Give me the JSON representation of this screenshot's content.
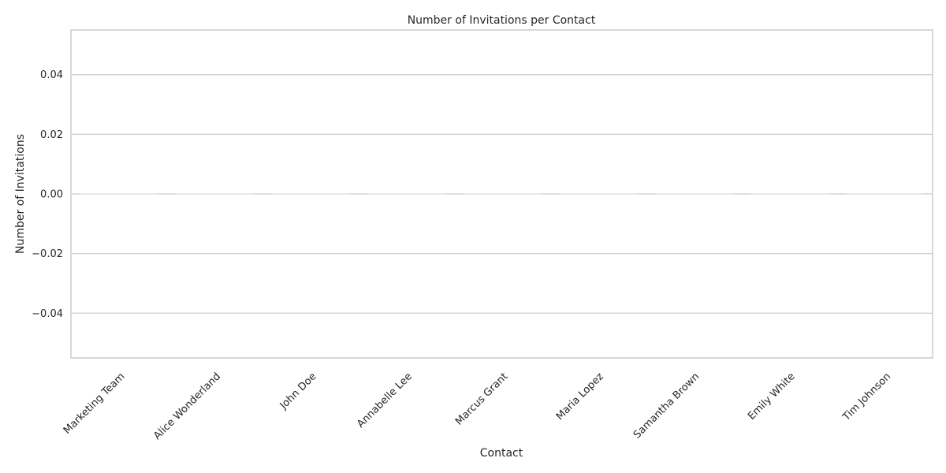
{
  "chart_data": {
    "type": "bar",
    "title": "Number of Invitations per Contact",
    "xlabel": "Contact",
    "ylabel": "Number of Invitations",
    "categories": [
      "Marketing Team",
      "Alice Wonderland",
      "John Doe",
      "Annabelle Lee",
      "Marcus Grant",
      "Maria Lopez",
      "Samantha Brown",
      "Emily White",
      "Tim Johnson"
    ],
    "values": [
      0,
      0,
      0,
      0,
      0,
      0,
      0,
      0,
      0
    ],
    "ylim": [
      -0.055,
      0.055
    ],
    "yticks": [
      0.04,
      0.02,
      0.0,
      -0.02,
      -0.04
    ],
    "ytick_labels": [
      "0.04",
      "0.02",
      "0.00",
      "−0.02",
      "−0.04"
    ],
    "grid": true,
    "legend": "none"
  },
  "colors": {
    "background": "#ffffff",
    "grid": "#cccccc",
    "spine": "#cccccc",
    "text": "#262626",
    "bar_edge": "#e0e0e0"
  }
}
